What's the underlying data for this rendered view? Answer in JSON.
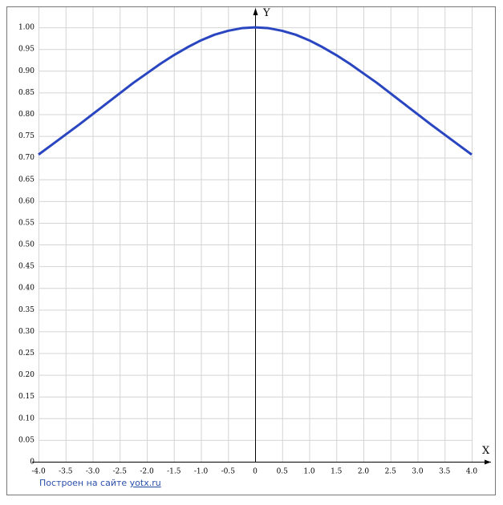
{
  "chart_data": {
    "type": "line",
    "x_axis_label": "X",
    "y_axis_label": "Y",
    "x": [
      -4,
      -3.75,
      -3.5,
      -3.25,
      -3,
      -2.75,
      -2.5,
      -2.25,
      -2,
      -1.75,
      -1.5,
      -1.25,
      -1,
      -0.75,
      -0.5,
      -0.25,
      0,
      0.25,
      0.5,
      0.75,
      1,
      1.25,
      1.5,
      1.75,
      2,
      2.25,
      2.5,
      2.75,
      3,
      3.25,
      3.5,
      3.75,
      4
    ],
    "values": [
      0.707,
      0.73,
      0.753,
      0.776,
      0.8,
      0.824,
      0.848,
      0.872,
      0.894,
      0.916,
      0.936,
      0.954,
      0.97,
      0.983,
      0.992,
      0.998,
      1.0,
      0.998,
      0.992,
      0.983,
      0.97,
      0.954,
      0.936,
      0.916,
      0.894,
      0.872,
      0.848,
      0.824,
      0.8,
      0.776,
      0.753,
      0.73,
      0.707
    ],
    "color": "#2a45c0",
    "xlim": [
      -4,
      4
    ],
    "ylim": [
      0,
      1.05
    ],
    "xticks": [
      {
        "value": -4,
        "label": "-4.0"
      },
      -3.5,
      {
        "value": -3,
        "label": "-3.0"
      },
      -2.5,
      {
        "value": -2,
        "label": "-2.0"
      },
      -1.5,
      {
        "value": -1,
        "label": "-1.0"
      },
      -0.5,
      0,
      0.5,
      {
        "value": 1,
        "label": "1.0"
      },
      1.5,
      {
        "value": 2,
        "label": "2.0"
      },
      2.5,
      {
        "value": 3,
        "label": "3.0"
      },
      3.5,
      {
        "value": 4,
        "label": "4.0"
      }
    ],
    "yticks": [
      0,
      0.05,
      {
        "value": 0.1,
        "label": "0.10"
      },
      0.15,
      {
        "value": 0.2,
        "label": "0.20"
      },
      0.25,
      {
        "value": 0.3,
        "label": "0.30"
      },
      0.35,
      {
        "value": 0.4,
        "label": "0.40"
      },
      0.45,
      {
        "value": 0.5,
        "label": "0.50"
      },
      0.55,
      {
        "value": 0.6,
        "label": "0.60"
      },
      0.65,
      {
        "value": 0.7,
        "label": "0.70"
      },
      0.75,
      {
        "value": 0.8,
        "label": "0.80"
      },
      0.85,
      {
        "value": 0.9,
        "label": "0.90"
      },
      0.95,
      {
        "value": 1,
        "label": "1.00"
      }
    ],
    "grid": true,
    "footer": {
      "text": "Построен на сайте",
      "link": "yotx.ru"
    }
  }
}
